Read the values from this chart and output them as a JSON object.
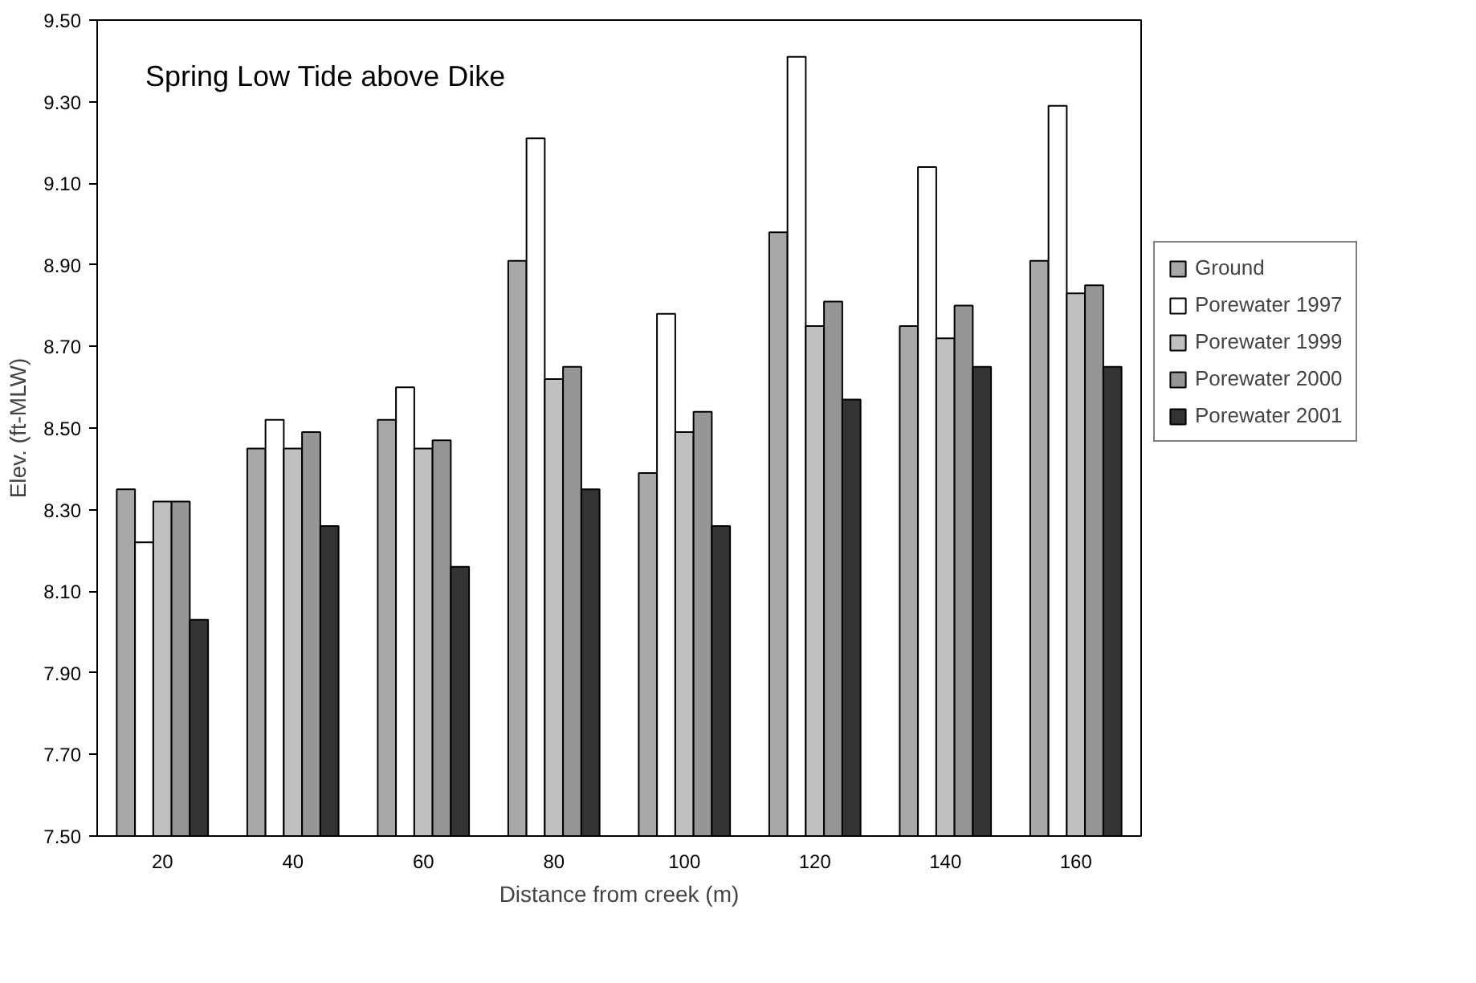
{
  "chart_data": {
    "type": "bar",
    "title": "Spring Low Tide above Dike",
    "xlabel": "Distance from creek (m)",
    "ylabel": "Elev. (ft-MLW)",
    "categories": [
      "20",
      "40",
      "60",
      "80",
      "100",
      "120",
      "140",
      "160"
    ],
    "series": [
      {
        "name": "Ground",
        "color": "#a8a8a8",
        "values": [
          8.35,
          8.45,
          8.52,
          8.91,
          8.39,
          8.98,
          8.75,
          8.91
        ]
      },
      {
        "name": "Porewater 1997",
        "color": "#ffffff",
        "values": [
          8.22,
          8.52,
          8.6,
          9.21,
          8.78,
          9.41,
          9.14,
          9.29
        ]
      },
      {
        "name": "Porewater 1999",
        "color": "#c0c0c0",
        "values": [
          8.32,
          8.45,
          8.45,
          8.62,
          8.49,
          8.75,
          8.72,
          8.83
        ]
      },
      {
        "name": "Porewater 2000",
        "color": "#969696",
        "values": [
          8.32,
          8.49,
          8.47,
          8.65,
          8.54,
          8.81,
          8.8,
          8.85
        ]
      },
      {
        "name": "Porewater 2001",
        "color": "#333333",
        "values": [
          8.03,
          8.26,
          8.16,
          8.35,
          8.26,
          8.57,
          8.65,
          8.65
        ]
      }
    ],
    "ylim": [
      7.5,
      9.5
    ],
    "yticks": [
      {
        "value": 7.5,
        "label": "7.50"
      },
      {
        "value": 7.7,
        "label": "7.70"
      },
      {
        "value": 7.9,
        "label": "7.90"
      },
      {
        "value": 8.1,
        "label": "8.10"
      },
      {
        "value": 8.3,
        "label": "8.30"
      },
      {
        "value": 8.5,
        "label": "8.50"
      },
      {
        "value": 8.7,
        "label": "8.70"
      },
      {
        "value": 8.9,
        "label": "8.90"
      },
      {
        "value": 9.1,
        "label": "9.10"
      },
      {
        "value": 9.3,
        "label": "9.30"
      },
      {
        "value": 9.5,
        "label": "9.50"
      }
    ],
    "legend": "right",
    "grid": false
  }
}
